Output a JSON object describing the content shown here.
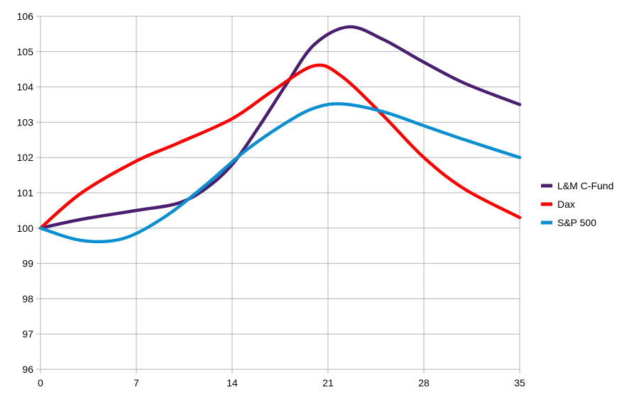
{
  "chart_data": {
    "type": "line",
    "title": "",
    "xlabel": "",
    "ylabel": "",
    "xlim": [
      0,
      35
    ],
    "ylim": [
      96,
      106
    ],
    "xticks": [
      0,
      7,
      14,
      21,
      28,
      35
    ],
    "yticks": [
      96,
      97,
      98,
      99,
      100,
      101,
      102,
      103,
      104,
      105,
      106
    ],
    "grid": true,
    "legend": "right",
    "series": [
      {
        "name": "L&M C-Fund",
        "color": "#4b1f6f",
        "points": [
          [
            0,
            100.0
          ],
          [
            3,
            100.25
          ],
          [
            7,
            100.5
          ],
          [
            10,
            100.7
          ],
          [
            12,
            101.1
          ],
          [
            14,
            101.8
          ],
          [
            16,
            102.9
          ],
          [
            18,
            104.1
          ],
          [
            20,
            105.2
          ],
          [
            22.5,
            105.7
          ],
          [
            25,
            105.35
          ],
          [
            28,
            104.7
          ],
          [
            31,
            104.1
          ],
          [
            35,
            103.5
          ]
        ]
      },
      {
        "name": "Dax",
        "color": "#ff0000",
        "points": [
          [
            0,
            100.0
          ],
          [
            3,
            101.0
          ],
          [
            7,
            101.9
          ],
          [
            10,
            102.4
          ],
          [
            14,
            103.1
          ],
          [
            17,
            103.9
          ],
          [
            20,
            104.6
          ],
          [
            22,
            104.3
          ],
          [
            25,
            103.2
          ],
          [
            28,
            102.0
          ],
          [
            31,
            101.1
          ],
          [
            35,
            100.3
          ]
        ]
      },
      {
        "name": "S&P 500",
        "color": "#0a8fd1",
        "points": [
          [
            0,
            100.0
          ],
          [
            3,
            99.65
          ],
          [
            6,
            99.7
          ],
          [
            9,
            100.3
          ],
          [
            12,
            101.2
          ],
          [
            15,
            102.2
          ],
          [
            18,
            103.0
          ],
          [
            20,
            103.4
          ],
          [
            22,
            103.52
          ],
          [
            25,
            103.3
          ],
          [
            28,
            102.9
          ],
          [
            31,
            102.5
          ],
          [
            35,
            102.0
          ]
        ]
      }
    ]
  }
}
